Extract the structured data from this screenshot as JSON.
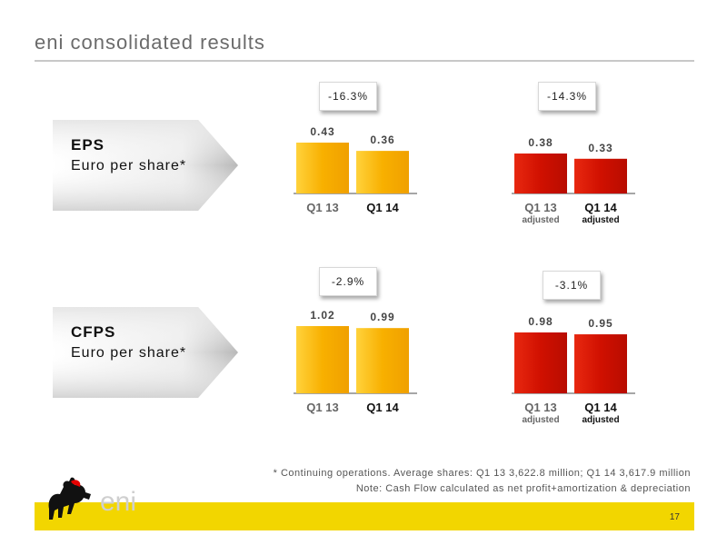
{
  "title": "eni consolidated results",
  "sections": [
    {
      "label": "EPS",
      "sublabel": "Euro per share*"
    },
    {
      "label": "CFPS",
      "sublabel": "Euro per share*"
    }
  ],
  "colors": {
    "yellow": "#f8b000",
    "red": "#d01000",
    "footer": "#f2d600"
  },
  "chart_data": [
    {
      "type": "bar",
      "group": "EPS reported",
      "categories": [
        "Q1 13",
        "Q1 14"
      ],
      "values": [
        0.43,
        0.36
      ],
      "change": "-16.3%",
      "color": "yellow"
    },
    {
      "type": "bar",
      "group": "EPS adjusted",
      "categories": [
        "Q1 13",
        "Q1 14"
      ],
      "category_sub": [
        "adjusted",
        "adjusted"
      ],
      "values": [
        0.38,
        0.33
      ],
      "change": "-14.3%",
      "color": "red"
    },
    {
      "type": "bar",
      "group": "CFPS reported",
      "categories": [
        "Q1 13",
        "Q1 14"
      ],
      "values": [
        1.02,
        0.99
      ],
      "change": "-2.9%",
      "color": "yellow"
    },
    {
      "type": "bar",
      "group": "CFPS adjusted",
      "categories": [
        "Q1 13",
        "Q1 14"
      ],
      "category_sub": [
        "adjusted",
        "adjusted"
      ],
      "values": [
        0.98,
        0.95
      ],
      "change": "-3.1%",
      "color": "red"
    }
  ],
  "footnotes": [
    "* Continuing operations.  Average shares: Q1 13  3,622.8 million; Q1 14  3,617.9 million",
    "Note: Cash Flow calculated as net profit+amortization & depreciation"
  ],
  "logo_text": "eni",
  "page_number": "17"
}
